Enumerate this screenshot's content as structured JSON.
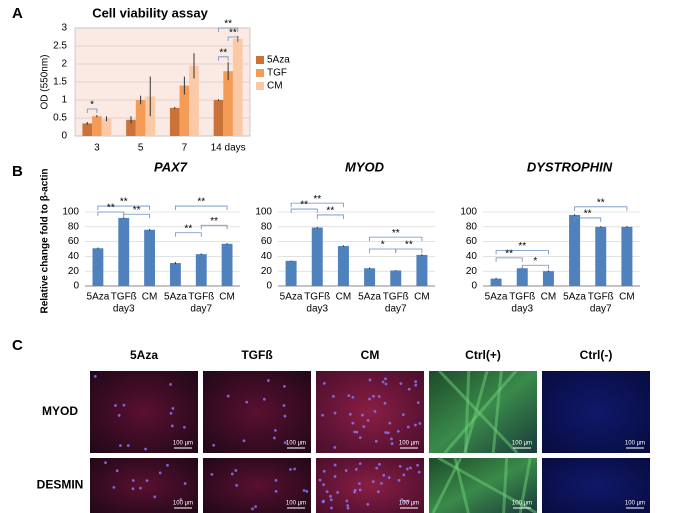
{
  "panel_labels": [
    "A",
    "B",
    "C"
  ],
  "chart_data": [
    {
      "type": "grouped_bar",
      "title": "Cell viability assay",
      "ylabel": "OD (550nm)",
      "categories": [
        "3",
        "5",
        "7",
        "14 days"
      ],
      "series": [
        {
          "name": "5Aza",
          "color": "#c9733a",
          "values": [
            0.35,
            0.45,
            0.78,
            1.0
          ],
          "errors": [
            0.04,
            0.1,
            0.03,
            0.02
          ]
        },
        {
          "name": "TGF",
          "color": "#f59b58",
          "values": [
            0.55,
            1.0,
            1.4,
            1.8
          ],
          "errors": [
            0.03,
            0.12,
            0.25,
            0.25
          ]
        },
        {
          "name": "CM",
          "color": "#fcc9a6",
          "values": [
            0.48,
            1.1,
            1.95,
            2.7
          ],
          "errors": [
            0.07,
            0.55,
            0.35,
            0.08
          ]
        }
      ],
      "ylim": [
        0,
        3
      ],
      "yticks": [
        0,
        0.5,
        1,
        1.5,
        2,
        2.5,
        3
      ],
      "grid": true,
      "legend": "right",
      "annotations": [
        "*",
        "**",
        "**",
        "**"
      ]
    },
    {
      "type": "bar",
      "title": "PAX7",
      "ylabel": "Relative change fold to β-actin",
      "color": "#4f81bd",
      "categories": [
        "5Aza",
        "TGFß",
        "CM",
        "5Aza",
        "TGFß",
        "CM"
      ],
      "groups": [
        "day3",
        "day7"
      ],
      "values": [
        51,
        92,
        76,
        31,
        43,
        57
      ],
      "errors": [
        1,
        1,
        1,
        1.5,
        1,
        1
      ],
      "ylim": [
        0,
        100
      ],
      "yticks": [
        0,
        20,
        40,
        60,
        80,
        100
      ],
      "grid": true,
      "annotations": [
        "**",
        "**",
        "**",
        "**",
        "**",
        "**"
      ]
    },
    {
      "type": "bar",
      "title": "MYOD",
      "color": "#4f81bd",
      "categories": [
        "5Aza",
        "TGFß",
        "CM",
        "5Aza",
        "TGFß",
        "CM"
      ],
      "groups": [
        "day3",
        "day7"
      ],
      "values": [
        34,
        79,
        54,
        24,
        21,
        42
      ],
      "errors": [
        0.5,
        1,
        1,
        1,
        0.5,
        1
      ],
      "ylim": [
        0,
        100
      ],
      "yticks": [
        0,
        20,
        40,
        60,
        80,
        100
      ],
      "grid": true,
      "annotations": [
        "**",
        "**",
        "**",
        "**",
        "*",
        "**"
      ]
    },
    {
      "type": "bar",
      "title": "DYSTROPHIN",
      "color": "#4f81bd",
      "categories": [
        "5Aza",
        "TGFß",
        "CM",
        "5Aza",
        "TGFß",
        "CM"
      ],
      "groups": [
        "day3",
        "day7"
      ],
      "values": [
        10,
        24,
        20,
        96,
        80,
        80
      ],
      "errors": [
        1,
        1,
        1,
        1,
        1,
        1
      ],
      "ylim": [
        0,
        100
      ],
      "yticks": [
        0,
        20,
        40,
        60,
        80,
        100
      ],
      "grid": true,
      "annotations": [
        "**",
        "**",
        "*",
        "**",
        "**"
      ]
    }
  ],
  "images": {
    "columns": [
      "5Aza",
      "TGFß",
      "CM",
      "Ctrl(+)",
      "Ctrl(-)"
    ],
    "rows": [
      "MYOD",
      "DESMIN"
    ],
    "scale_bar": "100 µm"
  }
}
